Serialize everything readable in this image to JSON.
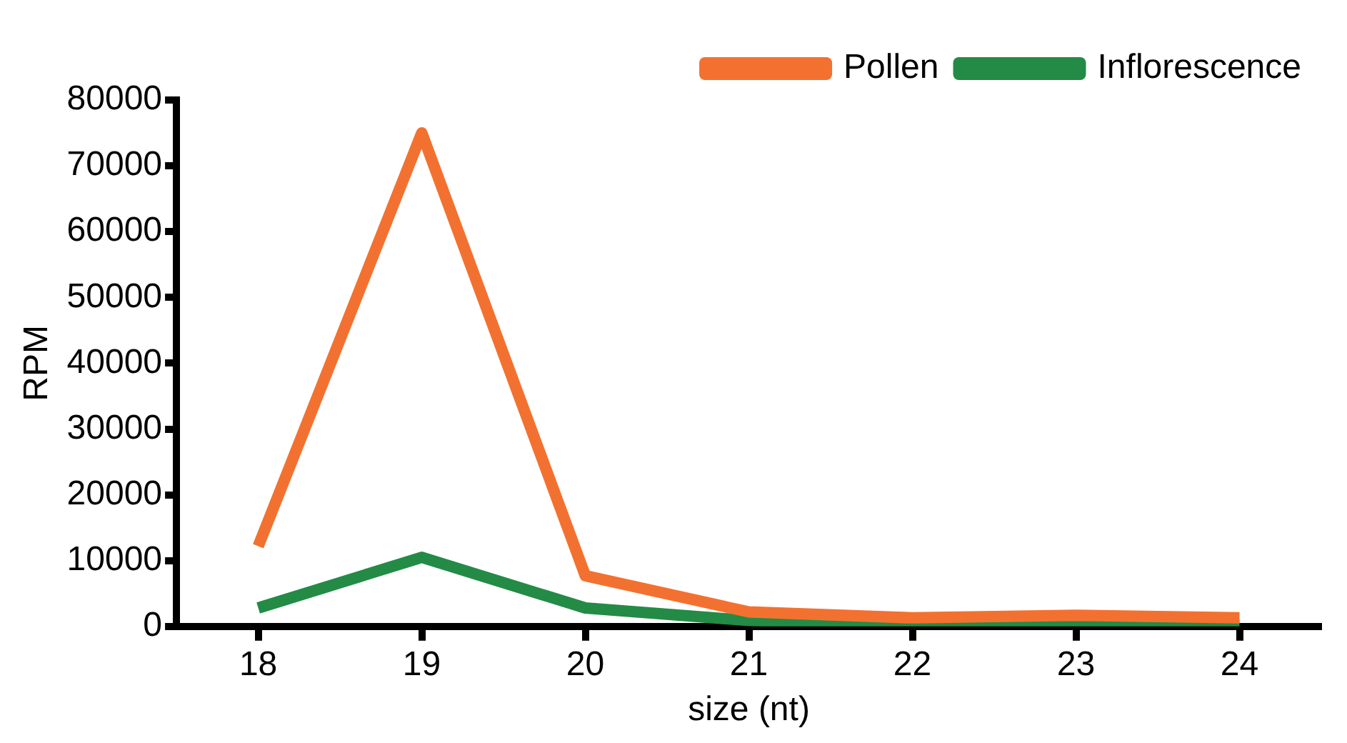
{
  "chart_data": {
    "type": "line",
    "xlabel": "size (nt)",
    "ylabel": "RPM",
    "categories": [
      "18",
      "19",
      "20",
      "21",
      "22",
      "23",
      "24"
    ],
    "series": [
      {
        "name": "Pollen",
        "color": "#f37130",
        "values": [
          12200,
          75000,
          7700,
          2200,
          1300,
          1700,
          1300
        ]
      },
      {
        "name": "Inflorescence",
        "color": "#238b45",
        "values": [
          2800,
          10500,
          2800,
          900,
          200,
          200,
          200
        ]
      }
    ],
    "ylim": [
      0,
      80000
    ],
    "yticks": [
      0,
      10000,
      20000,
      30000,
      40000,
      50000,
      60000,
      70000,
      80000
    ],
    "grid": false,
    "legend": "top right",
    "marker": "none",
    "line_style": "solid"
  }
}
